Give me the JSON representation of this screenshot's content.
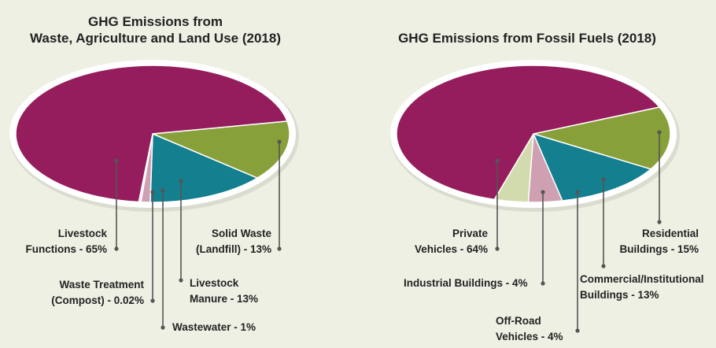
{
  "colors": {
    "background": "#eef0e4",
    "magenta": "#951d5d",
    "olive": "#88a03a",
    "teal": "#137f8f",
    "pink": "#cfa0b1",
    "pale_green": "#d2dbae",
    "rim": "#ffffff",
    "leader": "#555555"
  },
  "chart_data": [
    {
      "type": "pie",
      "title_line1": "GHG Emissions from",
      "title_line2": "Waste, Agriculture and Land Use (2018)",
      "slices": [
        {
          "label_line1": "Livestock",
          "label_line2": "Functions - 65%",
          "value": 65,
          "color": "#951d5d"
        },
        {
          "label_line1": "Solid Waste",
          "label_line2": "(Landfill) - 13%",
          "value": 13,
          "color": "#88a03a"
        },
        {
          "label_line1": "Livestock",
          "label_line2": "Manure - 13%",
          "value": 13,
          "color": "#137f8f"
        },
        {
          "label_line1": "Wastewater - 1%",
          "label_line2": "",
          "value": 1,
          "color": "#cfa0b1"
        },
        {
          "label_line1": "Waste Treatment",
          "label_line2": "(Compost) - 0.02%",
          "value": 0.02,
          "color": "#e8e0e4"
        }
      ]
    },
    {
      "type": "pie",
      "title_line1": "GHG Emissions from Fossil Fuels (2018)",
      "title_line2": "",
      "slices": [
        {
          "label_line1": "Private",
          "label_line2": "Vehicles - 64%",
          "value": 64,
          "color": "#951d5d"
        },
        {
          "label_line1": "Residential",
          "label_line2": "Buildings - 15%",
          "value": 15,
          "color": "#88a03a"
        },
        {
          "label_line1": "Commercial/Institutional",
          "label_line2": "Buildings - 13%",
          "value": 13,
          "color": "#137f8f"
        },
        {
          "label_line1": "Off-Road",
          "label_line2": "Vehicles - 4%",
          "value": 4,
          "color": "#cfa0b1"
        },
        {
          "label_line1": "Industrial Buildings - 4%",
          "label_line2": "",
          "value": 4,
          "color": "#d2dbae"
        }
      ]
    }
  ]
}
